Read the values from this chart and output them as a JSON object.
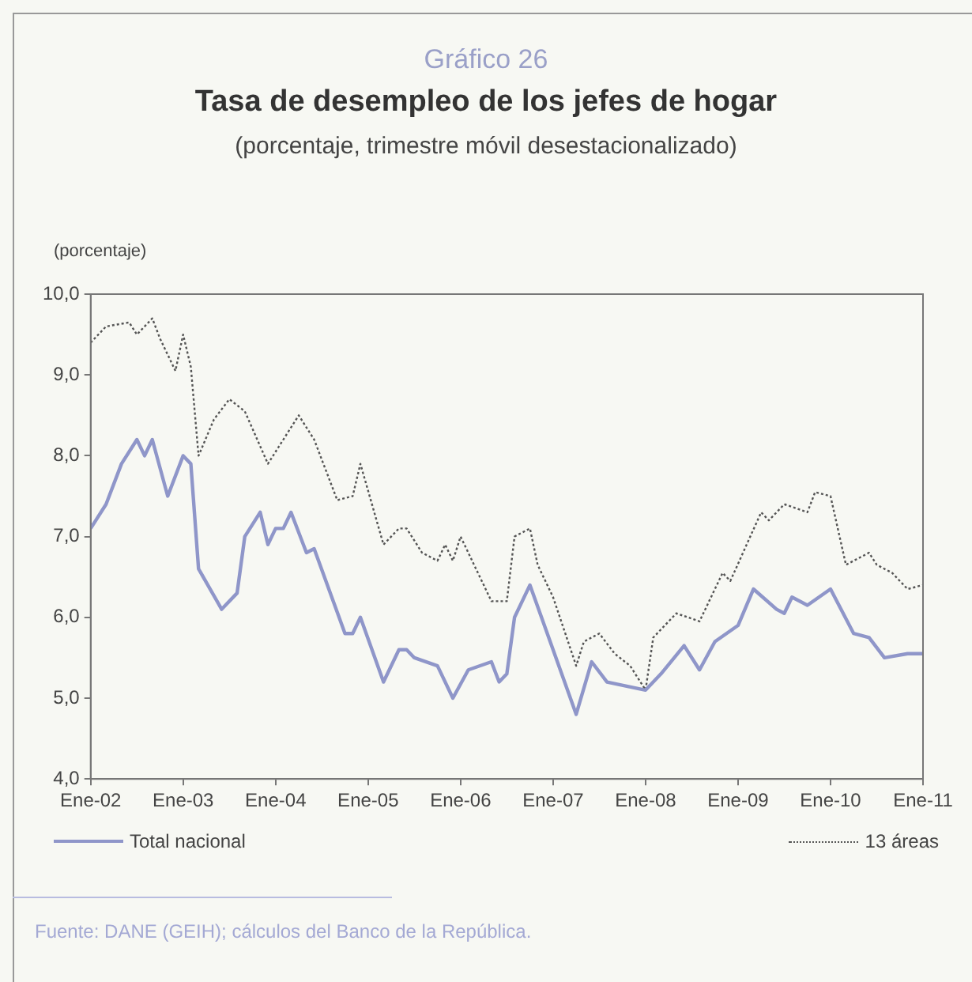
{
  "chart_data": {
    "type": "line",
    "title": "Tasa de desempleo de los jefes de hogar",
    "subtitle": "(porcentaje, trimestre móvil desestacionalizado)",
    "ylabel": "(porcentaje)",
    "annotations": [
      "Gráfico 26",
      "Fuente: DANE (GEIH); cálculos del Banco de la República."
    ],
    "xlim": [
      "2002-01",
      "2011-01"
    ],
    "xticks": [
      {
        "value": "2002-01",
        "label": "Ene-02"
      },
      {
        "value": "2003-01",
        "label": "Ene-03"
      },
      {
        "value": "2004-01",
        "label": "Ene-04"
      },
      {
        "value": "2005-01",
        "label": "Ene-05"
      },
      {
        "value": "2006-01",
        "label": "Ene-06"
      },
      {
        "value": "2007-01",
        "label": "Ene-07"
      },
      {
        "value": "2008-01",
        "label": "Ene-08"
      },
      {
        "value": "2009-01",
        "label": "Ene-09"
      },
      {
        "value": "2010-01",
        "label": "Ene-10"
      },
      {
        "value": "2011-01",
        "label": "Ene-11"
      }
    ],
    "ylim": [
      4,
      10
    ],
    "yticks": [
      {
        "value": 4,
        "label": "4,0"
      },
      {
        "value": 5,
        "label": "5,0"
      },
      {
        "value": 6,
        "label": "6,0"
      },
      {
        "value": 7,
        "label": "7,0"
      },
      {
        "value": 8,
        "label": "8,0"
      },
      {
        "value": 9,
        "label": "9,0"
      },
      {
        "value": 10,
        "label": "10,0"
      }
    ],
    "grid": false,
    "legend": "bottom",
    "series": [
      {
        "name": "Total nacional",
        "color": "#8f96c9",
        "line_style": "solid",
        "x": [
          "2002-01",
          "2002-03",
          "2002-05",
          "2002-07",
          "2002-08",
          "2002-09",
          "2002-11",
          "2003-01",
          "2003-02",
          "2003-03",
          "2003-06",
          "2003-08",
          "2003-09",
          "2003-11",
          "2003-12",
          "2004-01",
          "2004-02",
          "2004-03",
          "2004-05",
          "2004-06",
          "2004-10",
          "2004-11",
          "2004-12",
          "2005-03",
          "2005-05",
          "2005-06",
          "2005-07",
          "2005-10",
          "2005-12",
          "2006-02",
          "2006-05",
          "2006-06",
          "2006-07",
          "2006-08",
          "2006-10",
          "2007-04",
          "2007-06",
          "2007-08",
          "2008-01",
          "2008-03",
          "2008-06",
          "2008-08",
          "2008-10",
          "2009-01",
          "2009-03",
          "2009-06",
          "2009-07",
          "2009-08",
          "2009-10",
          "2010-01",
          "2010-04",
          "2010-06",
          "2010-08",
          "2010-11",
          "2011-01"
        ],
        "values": [
          7.1,
          7.4,
          7.9,
          8.2,
          8.0,
          8.2,
          7.5,
          8.0,
          7.9,
          6.6,
          6.1,
          6.3,
          7.0,
          7.3,
          6.9,
          7.1,
          7.1,
          7.3,
          6.8,
          6.85,
          5.8,
          5.8,
          6.0,
          5.2,
          5.6,
          5.6,
          5.5,
          5.4,
          5.0,
          5.35,
          5.45,
          5.2,
          5.3,
          6.0,
          6.4,
          4.8,
          5.45,
          5.2,
          5.1,
          5.3,
          5.65,
          5.35,
          5.7,
          5.9,
          6.35,
          6.1,
          6.05,
          6.25,
          6.15,
          6.35,
          5.8,
          5.75,
          5.5,
          5.55,
          5.55
        ]
      },
      {
        "name": "13 áreas",
        "color": "#555555",
        "line_style": "dotted",
        "x": [
          "2002-01",
          "2002-03",
          "2002-06",
          "2002-07",
          "2002-09",
          "2002-10",
          "2002-12",
          "2003-01",
          "2003-02",
          "2003-03",
          "2003-05",
          "2003-07",
          "2003-09",
          "2003-12",
          "2004-04",
          "2004-06",
          "2004-09",
          "2004-11",
          "2004-12",
          "2005-03",
          "2005-05",
          "2005-06",
          "2005-08",
          "2005-10",
          "2005-11",
          "2005-12",
          "2006-01",
          "2006-05",
          "2006-07",
          "2006-08",
          "2006-10",
          "2006-11",
          "2007-01",
          "2007-04",
          "2007-05",
          "2007-07",
          "2007-09",
          "2007-11",
          "2008-01",
          "2008-02",
          "2008-05",
          "2008-08",
          "2008-11",
          "2008-12",
          "2009-04",
          "2009-05",
          "2009-07",
          "2009-10",
          "2009-11",
          "2010-01",
          "2010-03",
          "2010-06",
          "2010-07",
          "2010-09",
          "2010-11",
          "2011-01"
        ],
        "values": [
          9.4,
          9.6,
          9.65,
          9.5,
          9.7,
          9.45,
          9.05,
          9.5,
          9.1,
          8.0,
          8.45,
          8.7,
          8.55,
          7.9,
          8.5,
          8.2,
          7.45,
          7.5,
          7.9,
          6.9,
          7.1,
          7.1,
          6.8,
          6.7,
          6.9,
          6.7,
          7.0,
          6.2,
          6.2,
          7.0,
          7.1,
          6.65,
          6.25,
          5.4,
          5.7,
          5.8,
          5.55,
          5.4,
          5.1,
          5.75,
          6.05,
          5.95,
          6.55,
          6.45,
          7.3,
          7.2,
          7.4,
          7.3,
          7.55,
          7.5,
          6.65,
          6.8,
          6.65,
          6.55,
          6.35,
          6.4
        ]
      }
    ]
  }
}
